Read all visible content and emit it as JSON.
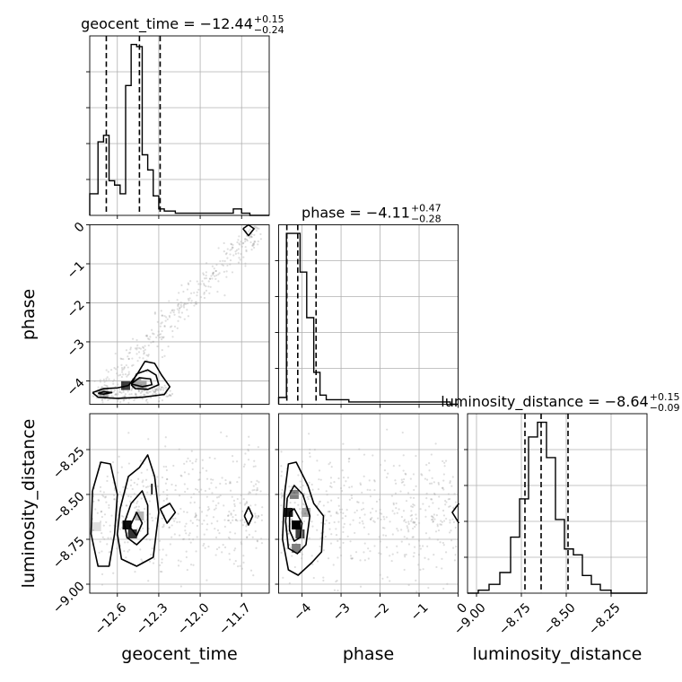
{
  "chart_data": {
    "type": "corner",
    "parameters": [
      "geocent_time",
      "phase",
      "luminosity_distance"
    ],
    "titles": [
      {
        "param": "geocent_time",
        "prefix": "geocent_time = ",
        "median": "−12.44",
        "plus": "+0.15",
        "minus": "−0.24"
      },
      {
        "param": "phase",
        "prefix": "phase = ",
        "median": "−4.11",
        "plus": "+0.47",
        "minus": "−0.28"
      },
      {
        "param": "luminosity_distance",
        "prefix": "luminosity_distance = ",
        "median": "−8.64",
        "plus": "+0.15",
        "minus": "−0.09"
      }
    ],
    "ranges": {
      "geocent_time": [
        -12.8,
        -11.5
      ],
      "phase": [
        -4.6,
        0.0
      ],
      "luminosity_distance": [
        -9.05,
        -8.05
      ]
    },
    "ticks": {
      "geocent_time": [
        {
          "v": -12.6,
          "label": "−12.6"
        },
        {
          "v": -12.3,
          "label": "−12.3"
        },
        {
          "v": -12.0,
          "label": "−12.0"
        },
        {
          "v": -11.7,
          "label": "−11.7"
        }
      ],
      "phase": [
        {
          "v": -4,
          "label": "−4"
        },
        {
          "v": -3,
          "label": "−3"
        },
        {
          "v": -2,
          "label": "−2"
        },
        {
          "v": -1,
          "label": "−1"
        },
        {
          "v": 0,
          "label": "0"
        }
      ],
      "luminosity_distance": [
        {
          "v": -9.0,
          "label": "−9.00"
        },
        {
          "v": -8.75,
          "label": "−8.75"
        },
        {
          "v": -8.5,
          "label": "−8.50"
        },
        {
          "v": -8.25,
          "label": "−8.25"
        }
      ]
    },
    "histograms": {
      "geocent_time": {
        "edges": [
          -12.8,
          -12.74,
          -12.7,
          -12.66,
          -12.62,
          -12.58,
          -12.54,
          -12.5,
          -12.46,
          -12.42,
          -12.38,
          -12.34,
          -12.3,
          -12.26,
          -12.22,
          -12.18,
          -12.12,
          -12.04,
          -11.94,
          -11.84,
          -11.76,
          -11.7,
          -11.64,
          -11.56,
          -11.5
        ],
        "counts": [
          10,
          34,
          37,
          16,
          14,
          10,
          60,
          79,
          78,
          28,
          21,
          9,
          3,
          2,
          2,
          1,
          1,
          1,
          1,
          1,
          3,
          1,
          0,
          0
        ],
        "quantiles": [
          -12.68,
          -12.44,
          -12.29
        ]
      },
      "phase": {
        "edges": [
          -4.6,
          -4.4,
          -4.22,
          -4.05,
          -3.88,
          -3.7,
          -3.54,
          -3.38,
          -3.2,
          -3.0,
          -2.8,
          -2.6,
          -2.4,
          -2.2,
          -2.0,
          -1.8,
          -1.6,
          -1.4,
          -1.2,
          -1.0,
          -0.8,
          -0.6,
          -0.4,
          -0.2,
          0.0
        ],
        "counts": [
          3,
          75,
          75,
          58,
          38,
          14,
          4,
          2,
          2,
          2,
          1,
          1,
          1,
          1,
          1,
          1,
          1,
          1,
          1,
          1,
          1,
          1,
          1,
          0
        ],
        "quantiles": [
          -4.39,
          -4.11,
          -3.64
        ]
      },
      "luminosity_distance": {
        "edges": [
          -9.05,
          -8.99,
          -8.93,
          -8.87,
          -8.81,
          -8.76,
          -8.71,
          -8.66,
          -8.61,
          -8.56,
          -8.51,
          -8.46,
          -8.41,
          -8.36,
          -8.31,
          -8.25,
          -8.19,
          -8.13,
          -8.05
        ],
        "counts": [
          0,
          1,
          3,
          7,
          19,
          32,
          53,
          58,
          46,
          25,
          15,
          13,
          6,
          3,
          1,
          0,
          0,
          0
        ],
        "quantiles": [
          -8.73,
          -8.64,
          -8.49
        ]
      }
    },
    "panels_2d": [
      {
        "x": "geocent_time",
        "y": "phase",
        "density": [
          {
            "x": -12.54,
            "y": -4.12,
            "level": 0.75
          },
          {
            "x": -12.46,
            "y": -4.05,
            "level": 0.35
          },
          {
            "x": -12.42,
            "y": -4.1,
            "level": 0.35
          },
          {
            "x": -12.7,
            "y": -4.32,
            "level": 0.25
          }
        ],
        "contours": [
          [
            [
              -12.78,
              -4.3
            ],
            [
              -12.7,
              -4.2
            ],
            [
              -12.6,
              -4.18
            ],
            [
              -12.52,
              -4.12
            ],
            [
              -12.46,
              -3.85
            ],
            [
              -12.4,
              -3.5
            ],
            [
              -12.33,
              -3.55
            ],
            [
              -12.28,
              -3.85
            ],
            [
              -12.22,
              -4.15
            ],
            [
              -12.26,
              -4.35
            ],
            [
              -12.42,
              -4.42
            ],
            [
              -12.6,
              -4.45
            ],
            [
              -12.74,
              -4.42
            ],
            [
              -12.78,
              -4.3
            ]
          ],
          [
            [
              -12.5,
              -4.1
            ],
            [
              -12.46,
              -3.82
            ],
            [
              -12.38,
              -3.72
            ],
            [
              -12.32,
              -3.85
            ],
            [
              -12.3,
              -4.1
            ],
            [
              -12.38,
              -4.22
            ],
            [
              -12.47,
              -4.2
            ],
            [
              -12.5,
              -4.1
            ]
          ],
          [
            [
              -12.5,
              -4.08
            ],
            [
              -12.44,
              -3.92
            ],
            [
              -12.36,
              -3.95
            ],
            [
              -12.35,
              -4.1
            ],
            [
              -12.42,
              -4.15
            ],
            [
              -12.5,
              -4.08
            ]
          ],
          [
            [
              -12.74,
              -4.32
            ],
            [
              -12.7,
              -4.28
            ],
            [
              -12.64,
              -4.3
            ],
            [
              -12.7,
              -4.34
            ],
            [
              -12.74,
              -4.32
            ]
          ],
          [
            [
              -11.69,
              -0.1
            ],
            [
              -11.65,
              0.0
            ],
            [
              -11.61,
              -0.1
            ],
            [
              -11.65,
              -0.28
            ],
            [
              -11.69,
              -0.1
            ]
          ]
        ],
        "scatter": {
          "model": "band",
          "n": 520,
          "x0": -12.75,
          "y0": -4.35,
          "x1": -11.55,
          "y1": -0.05,
          "spread_y": 0.35
        }
      },
      {
        "x": "geocent_time",
        "y": "luminosity_distance",
        "density": [
          {
            "x": -12.53,
            "y": -8.67,
            "level": 0.95
          },
          {
            "x": -12.49,
            "y": -8.72,
            "level": 0.8
          },
          {
            "x": -12.44,
            "y": -8.62,
            "level": 0.3
          },
          {
            "x": -12.75,
            "y": -8.68,
            "level": 0.12
          }
        ],
        "contours": [
          [
            [
              -12.78,
              -8.48
            ],
            [
              -12.72,
              -8.32
            ],
            [
              -12.65,
              -8.33
            ],
            [
              -12.6,
              -8.5
            ],
            [
              -12.62,
              -8.72
            ],
            [
              -12.66,
              -8.9
            ],
            [
              -12.74,
              -8.9
            ],
            [
              -12.79,
              -8.72
            ],
            [
              -12.78,
              -8.48
            ]
          ],
          [
            [
              -12.58,
              -8.58
            ],
            [
              -12.52,
              -8.4
            ],
            [
              -12.44,
              -8.35
            ],
            [
              -12.38,
              -8.28
            ],
            [
              -12.33,
              -8.4
            ],
            [
              -12.3,
              -8.6
            ],
            [
              -12.34,
              -8.85
            ],
            [
              -12.46,
              -8.9
            ],
            [
              -12.57,
              -8.86
            ],
            [
              -12.6,
              -8.72
            ],
            [
              -12.58,
              -8.58
            ]
          ],
          [
            [
              -12.55,
              -8.66
            ],
            [
              -12.5,
              -8.55
            ],
            [
              -12.42,
              -8.48
            ],
            [
              -12.38,
              -8.56
            ],
            [
              -12.38,
              -8.72
            ],
            [
              -12.46,
              -8.78
            ],
            [
              -12.53,
              -8.74
            ],
            [
              -12.55,
              -8.66
            ]
          ],
          [
            [
              -12.51,
              -8.68
            ],
            [
              -12.46,
              -8.6
            ],
            [
              -12.42,
              -8.66
            ],
            [
              -12.46,
              -8.73
            ],
            [
              -12.51,
              -8.68
            ]
          ],
          [
            [
              -12.29,
              -8.58
            ],
            [
              -12.22,
              -8.55
            ],
            [
              -12.18,
              -8.6
            ],
            [
              -12.24,
              -8.66
            ],
            [
              -12.29,
              -8.58
            ]
          ],
          [
            [
              -11.68,
              -8.62
            ],
            [
              -11.65,
              -8.57
            ],
            [
              -11.62,
              -8.62
            ],
            [
              -11.65,
              -8.67
            ],
            [
              -11.68,
              -8.62
            ]
          ]
        ],
        "segments": [
          [
            [
              -12.35,
              -8.44
            ],
            [
              -12.35,
              -8.5
            ]
          ]
        ],
        "scatter": {
          "model": "cloud",
          "n": 480,
          "x0": -12.78,
          "x1": -11.55,
          "ymean": -8.6,
          "ysd": 0.17
        }
      },
      {
        "x": "phase",
        "y": "luminosity_distance",
        "density": [
          {
            "x": -4.15,
            "y": -8.67,
            "level": 1.0
          },
          {
            "x": -4.35,
            "y": -8.6,
            "level": 0.9
          },
          {
            "x": -4.05,
            "y": -8.72,
            "level": 0.75
          },
          {
            "x": -4.2,
            "y": -8.5,
            "level": 0.5
          },
          {
            "x": -4.15,
            "y": -8.8,
            "level": 0.5
          },
          {
            "x": -3.9,
            "y": -8.6,
            "level": 0.35
          }
        ],
        "contours": [
          [
            [
              -4.45,
              -8.5
            ],
            [
              -4.35,
              -8.33
            ],
            [
              -4.15,
              -8.32
            ],
            [
              -3.85,
              -8.45
            ],
            [
              -3.7,
              -8.55
            ],
            [
              -3.45,
              -8.62
            ],
            [
              -3.5,
              -8.82
            ],
            [
              -3.75,
              -8.88
            ],
            [
              -4.1,
              -8.95
            ],
            [
              -4.35,
              -8.92
            ],
            [
              -4.5,
              -8.75
            ],
            [
              -4.45,
              -8.5
            ]
          ],
          [
            [
              -4.38,
              -8.52
            ],
            [
              -4.2,
              -8.45
            ],
            [
              -3.98,
              -8.5
            ],
            [
              -3.8,
              -8.62
            ],
            [
              -3.9,
              -8.78
            ],
            [
              -4.12,
              -8.83
            ],
            [
              -4.35,
              -8.8
            ],
            [
              -4.42,
              -8.65
            ],
            [
              -4.38,
              -8.52
            ]
          ],
          [
            [
              -4.32,
              -8.6
            ],
            [
              -4.2,
              -8.58
            ],
            [
              -4.0,
              -8.66
            ],
            [
              -4.05,
              -8.74
            ],
            [
              -4.2,
              -8.76
            ],
            [
              -4.32,
              -8.7
            ],
            [
              -4.32,
              -8.6
            ]
          ],
          [
            [
              0.02,
              -8.55
            ],
            [
              -0.15,
              -8.6
            ],
            [
              0.02,
              -8.66
            ]
          ]
        ],
        "scatter": {
          "model": "cloud",
          "n": 480,
          "x0": -4.55,
          "x1": -0.05,
          "ymean": -8.6,
          "ysd": 0.17
        }
      }
    ]
  }
}
